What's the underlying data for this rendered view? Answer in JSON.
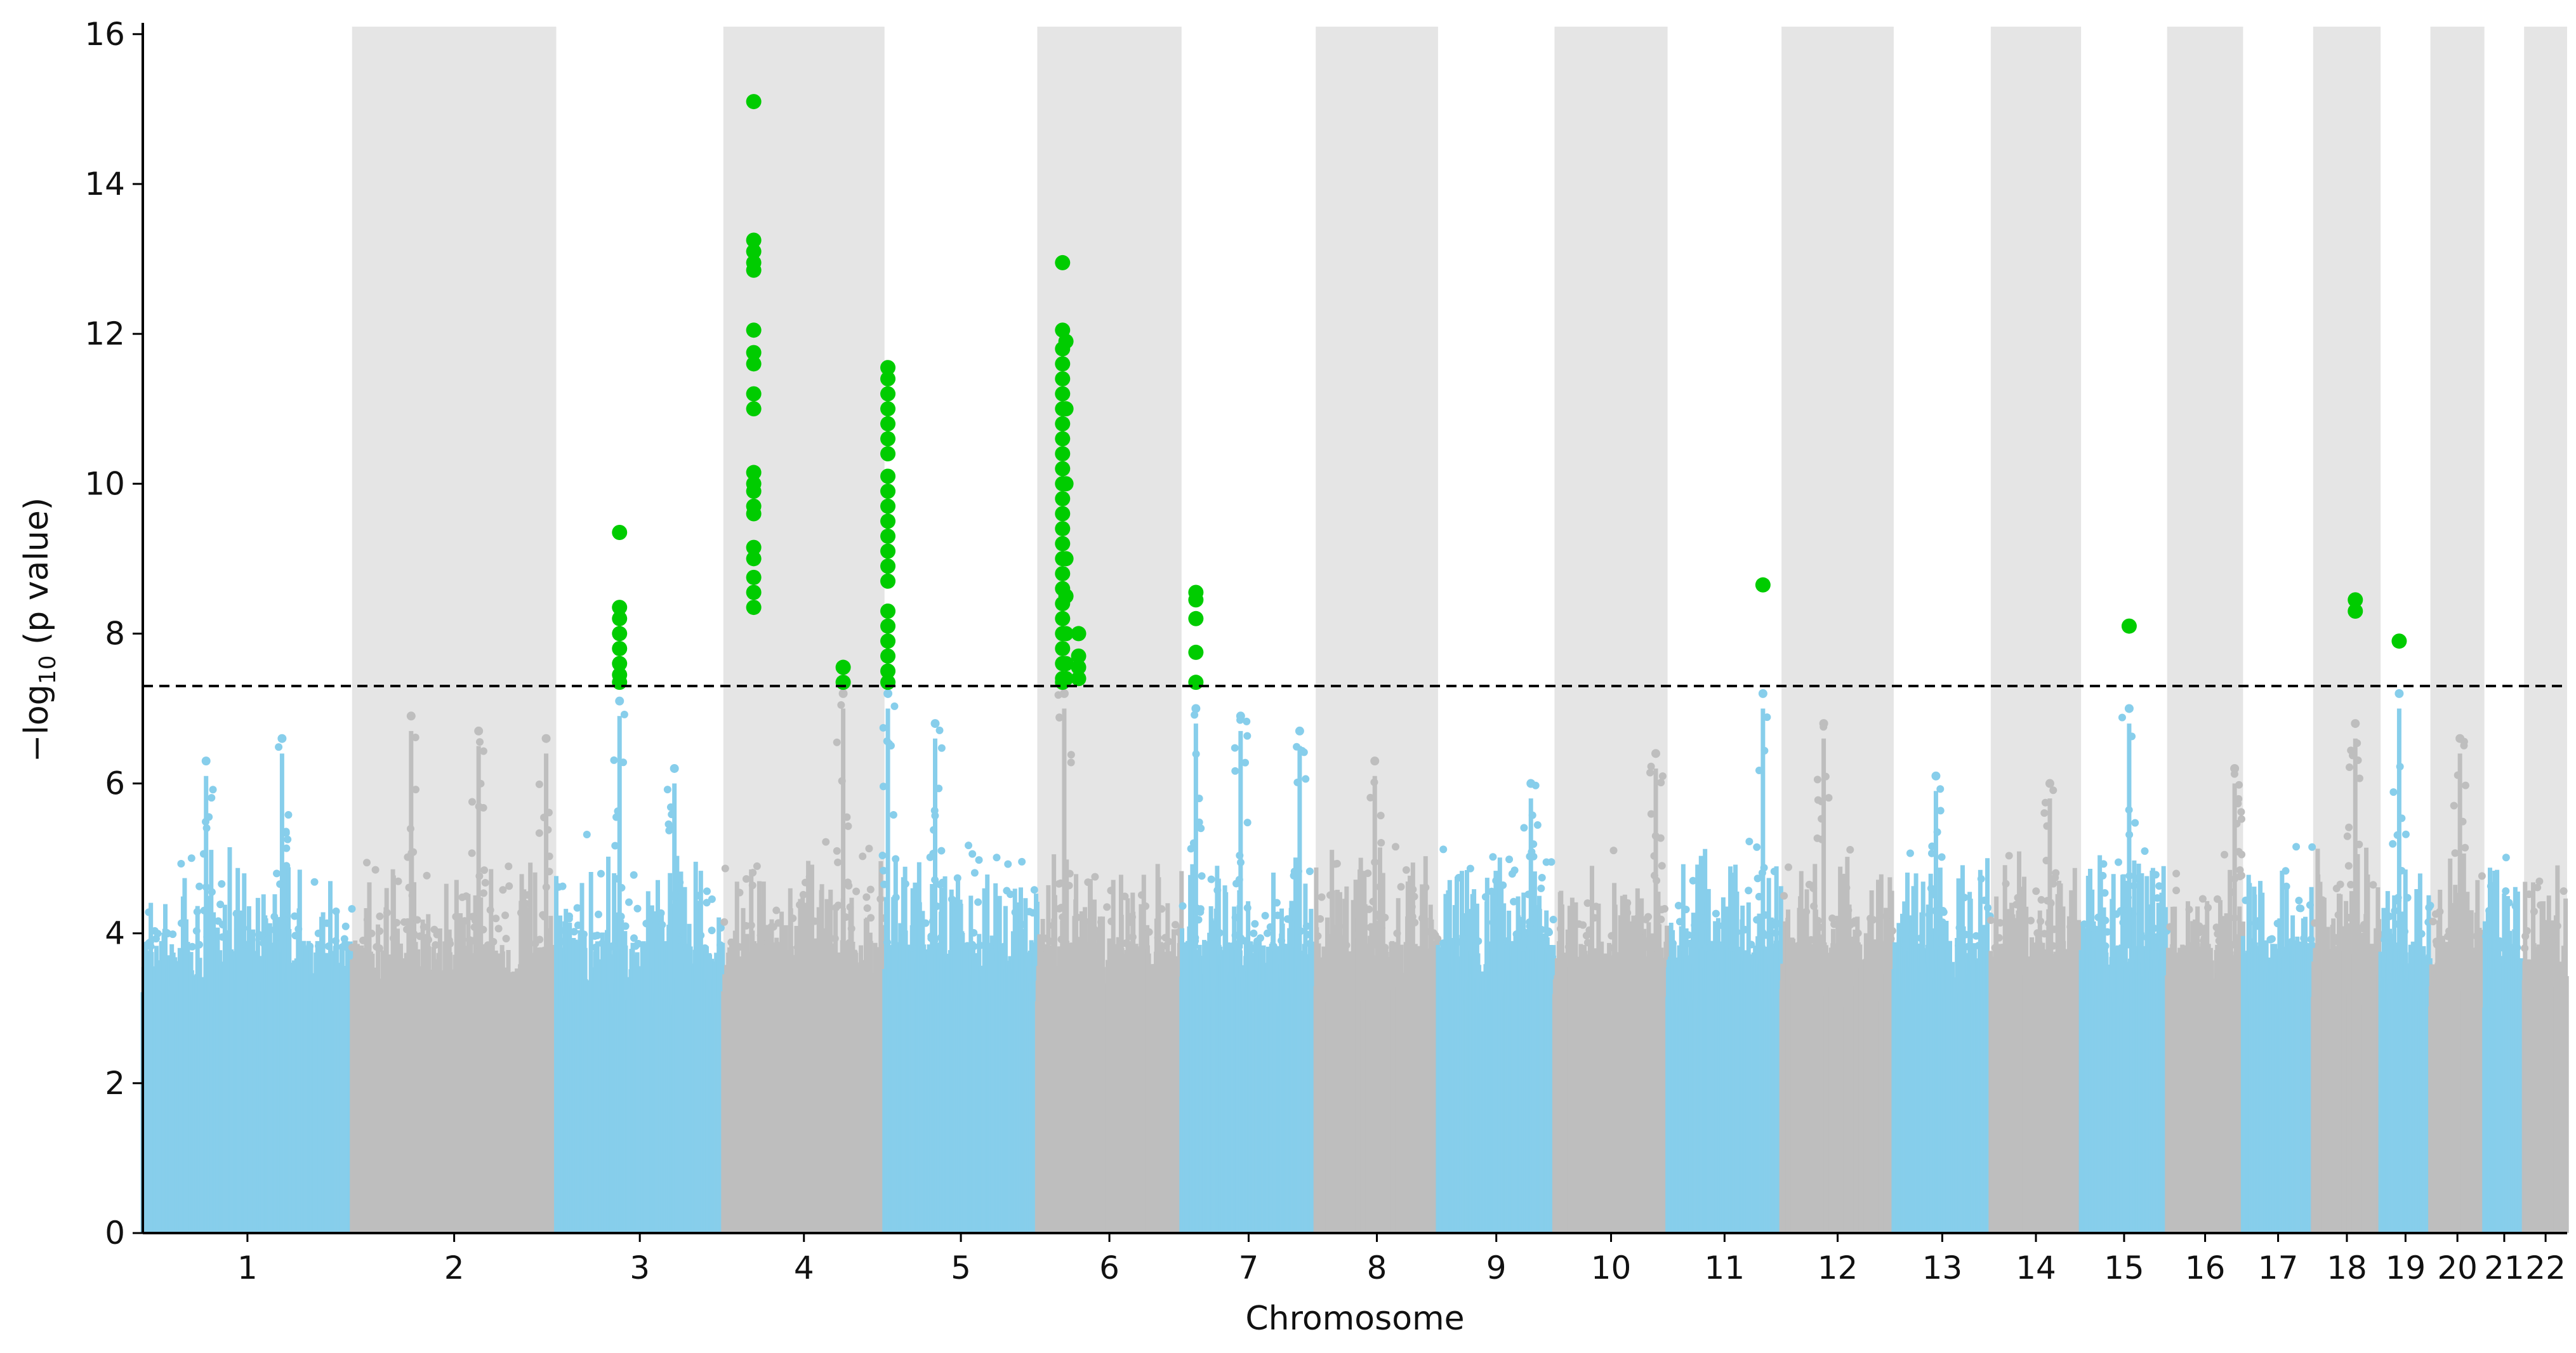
{
  "chart_data": {
    "type": "scatter",
    "subtype": "manhattan",
    "xlabel": "Chromosome",
    "ylabel_main": "−log",
    "ylabel_sub": "10",
    "ylabel_tail": " (p value)",
    "ylim": [
      0,
      16.1
    ],
    "yticks": [
      0,
      2,
      4,
      6,
      8,
      10,
      12,
      14,
      16
    ],
    "significance_threshold": 7.3,
    "colors": {
      "odd": "#87ceeb",
      "even": "#bebebe",
      "significant": "#00cc00",
      "band": "#e5e5e5",
      "threshold": "#000000"
    },
    "chromosomes": [
      {
        "label": "1",
        "start": 0,
        "end": 248
      },
      {
        "label": "2",
        "start": 248,
        "end": 490
      },
      {
        "label": "3",
        "start": 490,
        "end": 688
      },
      {
        "label": "4",
        "start": 688,
        "end": 879
      },
      {
        "label": "5",
        "start": 879,
        "end": 1060
      },
      {
        "label": "6",
        "start": 1060,
        "end": 1231
      },
      {
        "label": "7",
        "start": 1231,
        "end": 1390
      },
      {
        "label": "8",
        "start": 1390,
        "end": 1535
      },
      {
        "label": "9",
        "start": 1535,
        "end": 1673
      },
      {
        "label": "10",
        "start": 1673,
        "end": 1807
      },
      {
        "label": "11",
        "start": 1807,
        "end": 1942
      },
      {
        "label": "12",
        "start": 1942,
        "end": 2075
      },
      {
        "label": "13",
        "start": 2075,
        "end": 2190
      },
      {
        "label": "14",
        "start": 2190,
        "end": 2297
      },
      {
        "label": "15",
        "start": 2297,
        "end": 2399
      },
      {
        "label": "16",
        "start": 2399,
        "end": 2489
      },
      {
        "label": "17",
        "start": 2489,
        "end": 2572
      },
      {
        "label": "18",
        "start": 2572,
        "end": 2652
      },
      {
        "label": "19",
        "start": 2652,
        "end": 2711
      },
      {
        "label": "20",
        "start": 2711,
        "end": 2775
      },
      {
        "label": "21",
        "start": 2775,
        "end": 2822
      },
      {
        "label": "22",
        "start": 2822,
        "end": 2873
      }
    ],
    "significant_hits": [
      {
        "chrom": "3",
        "pos": 75,
        "values": [
          9.35,
          8.35,
          8.2,
          8.0,
          7.8,
          7.6,
          7.45,
          7.35
        ]
      },
      {
        "chrom": "4",
        "pos": 36,
        "values": [
          15.1,
          13.25,
          13.1,
          12.95,
          12.85,
          12.05,
          11.75,
          11.6,
          11.2,
          11.0,
          10.15,
          10.0,
          9.9,
          9.7,
          9.6,
          9.15,
          9.0,
          8.75,
          8.55,
          8.35
        ]
      },
      {
        "chrom": "4",
        "pos": 142,
        "values": [
          7.55,
          7.35
        ]
      },
      {
        "chrom": "5",
        "pos": 4,
        "values": [
          11.55,
          11.4,
          11.2,
          11.0,
          10.8,
          10.6,
          10.4,
          10.1,
          9.9,
          9.7,
          9.5,
          9.3,
          9.1,
          8.9,
          8.7,
          8.3,
          8.1,
          7.9,
          7.7,
          7.5,
          7.35
        ]
      },
      {
        "chrom": "6",
        "pos": 30,
        "values": [
          12.95,
          12.05,
          11.8,
          11.6,
          11.4,
          11.2,
          11.0,
          10.8,
          10.6,
          10.4,
          10.2,
          10.0,
          9.8,
          9.6,
          9.4,
          9.2,
          9.0,
          8.8,
          8.6,
          8.4,
          8.2,
          8.0,
          7.8,
          7.6,
          7.4,
          7.35
        ]
      },
      {
        "chrom": "6",
        "pos": 34,
        "values": [
          11.9,
          11.0,
          10.0,
          9.0,
          8.5,
          8.0,
          7.6,
          7.4
        ]
      },
      {
        "chrom": "6",
        "pos": 49,
        "values": [
          8.0,
          7.7,
          7.55,
          7.4
        ]
      },
      {
        "chrom": "7",
        "pos": 17,
        "values": [
          8.55,
          8.45,
          8.2,
          7.75,
          7.35
        ]
      },
      {
        "chrom": "11",
        "pos": 113,
        "values": [
          8.65
        ]
      },
      {
        "chrom": "15",
        "pos": 57,
        "values": [
          8.1
        ]
      },
      {
        "chrom": "18",
        "pos": 50,
        "values": [
          8.45,
          8.3
        ]
      },
      {
        "chrom": "19",
        "pos": 22,
        "values": [
          7.9
        ]
      }
    ],
    "notable_peaks": [
      {
        "chrom": "1",
        "pos": 75,
        "height": 6.3
      },
      {
        "chrom": "1",
        "pos": 165,
        "height": 6.6
      },
      {
        "chrom": "2",
        "pos": 70,
        "height": 6.9
      },
      {
        "chrom": "2",
        "pos": 150,
        "height": 6.7
      },
      {
        "chrom": "2",
        "pos": 230,
        "height": 6.6
      },
      {
        "chrom": "3",
        "pos": 75,
        "height": 7.1
      },
      {
        "chrom": "3",
        "pos": 140,
        "height": 6.2
      },
      {
        "chrom": "4",
        "pos": 142,
        "height": 7.2
      },
      {
        "chrom": "5",
        "pos": 4,
        "height": 7.2
      },
      {
        "chrom": "5",
        "pos": 60,
        "height": 6.8
      },
      {
        "chrom": "6",
        "pos": 32,
        "height": 7.2
      },
      {
        "chrom": "7",
        "pos": 17,
        "height": 7.0
      },
      {
        "chrom": "7",
        "pos": 70,
        "height": 6.9
      },
      {
        "chrom": "7",
        "pos": 140,
        "height": 6.7
      },
      {
        "chrom": "8",
        "pos": 70,
        "height": 6.3
      },
      {
        "chrom": "9",
        "pos": 110,
        "height": 6.0
      },
      {
        "chrom": "10",
        "pos": 120,
        "height": 6.4
      },
      {
        "chrom": "11",
        "pos": 113,
        "height": 7.2
      },
      {
        "chrom": "12",
        "pos": 50,
        "height": 6.8
      },
      {
        "chrom": "13",
        "pos": 50,
        "height": 6.1
      },
      {
        "chrom": "14",
        "pos": 70,
        "height": 6.0
      },
      {
        "chrom": "15",
        "pos": 57,
        "height": 7.0
      },
      {
        "chrom": "16",
        "pos": 80,
        "height": 6.2
      },
      {
        "chrom": "18",
        "pos": 50,
        "height": 6.8
      },
      {
        "chrom": "19",
        "pos": 22,
        "height": 7.2
      },
      {
        "chrom": "20",
        "pos": 35,
        "height": 6.6
      }
    ]
  }
}
